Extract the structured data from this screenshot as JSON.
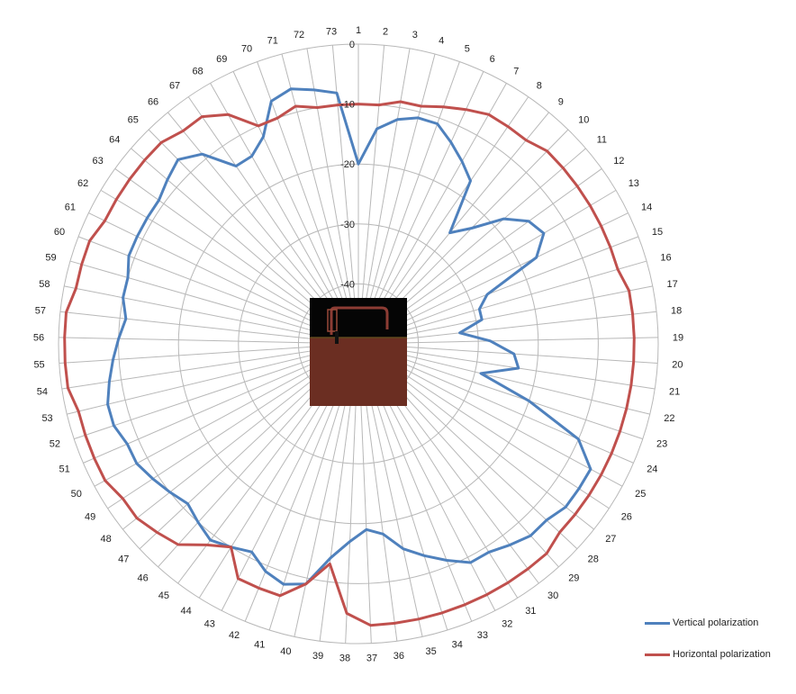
{
  "chart_data": {
    "type": "radar",
    "categories": [
      "1",
      "2",
      "3",
      "4",
      "5",
      "6",
      "7",
      "8",
      "9",
      "10",
      "11",
      "12",
      "13",
      "14",
      "15",
      "16",
      "17",
      "18",
      "19",
      "20",
      "21",
      "22",
      "23",
      "24",
      "25",
      "26",
      "27",
      "28",
      "29",
      "30",
      "31",
      "32",
      "33",
      "34",
      "35",
      "36",
      "37",
      "38",
      "39",
      "40",
      "41",
      "42",
      "43",
      "44",
      "45",
      "46",
      "47",
      "48",
      "49",
      "50",
      "51",
      "52",
      "53",
      "54",
      "55",
      "56",
      "57",
      "58",
      "59",
      "60",
      "61",
      "62",
      "63",
      "64",
      "65",
      "66",
      "67",
      "68",
      "69",
      "70",
      "71",
      "72",
      "73"
    ],
    "radial_ticks": [
      "0",
      "-10",
      "-20",
      "-30",
      "-40"
    ],
    "rlim": [
      -50,
      0
    ],
    "grid": true,
    "legend_position": "bottom-right",
    "series": [
      {
        "name": "Vertical polarization",
        "color": "#4f81bd",
        "values": [
          -20,
          -14,
          -12,
          -11,
          -11,
          -13,
          -15,
          -17,
          -26,
          -23,
          -18,
          -15,
          -14,
          -17,
          -27,
          -29,
          -29,
          -33,
          -28,
          -24,
          -23,
          -29,
          -20,
          -10,
          -6,
          -6,
          -6,
          -7,
          -7,
          -8,
          -9,
          -9,
          -11,
          -13,
          -15,
          -18,
          -19,
          -17,
          -14,
          -9,
          -8,
          -9,
          -11,
          -10,
          -9,
          -10,
          -11,
          -10,
          -9,
          -8,
          -8,
          -7,
          -7,
          -8,
          -9,
          -10,
          -11,
          -10,
          -10,
          -9,
          -9,
          -9,
          -9,
          -8,
          -7,
          -9,
          -14,
          -14,
          -12,
          -7,
          -6,
          -7,
          -8
        ]
      },
      {
        "name": "Horizontal polarization",
        "color": "#c0504d",
        "values": [
          -10,
          -10,
          -9,
          -9,
          -8,
          -7,
          -6,
          -6,
          -6,
          -5,
          -5,
          -5,
          -5,
          -5,
          -5,
          -5,
          -4,
          -4,
          -4,
          -4,
          -4,
          -4,
          -4,
          -4,
          -4,
          -4,
          -4,
          -4,
          -3,
          -3,
          -3,
          -3,
          -3,
          -3,
          -3,
          -3,
          -3,
          -5,
          -13,
          -9,
          -6,
          -6,
          -6,
          -10,
          -8,
          -5,
          -4,
          -3,
          -3,
          -2,
          -2,
          -2,
          -2,
          -1,
          -1,
          -1,
          -1,
          -2,
          -2,
          -2,
          -3,
          -3,
          -3,
          -3,
          -3,
          -4,
          -4,
          -6,
          -10,
          -10,
          -9,
          -10,
          -10
        ]
      }
    ]
  },
  "legend": {
    "items": [
      {
        "label": "Vertical polarization",
        "color": "#4f81bd"
      },
      {
        "label": "Horizontal polarization",
        "color": "#c0504d"
      }
    ]
  }
}
